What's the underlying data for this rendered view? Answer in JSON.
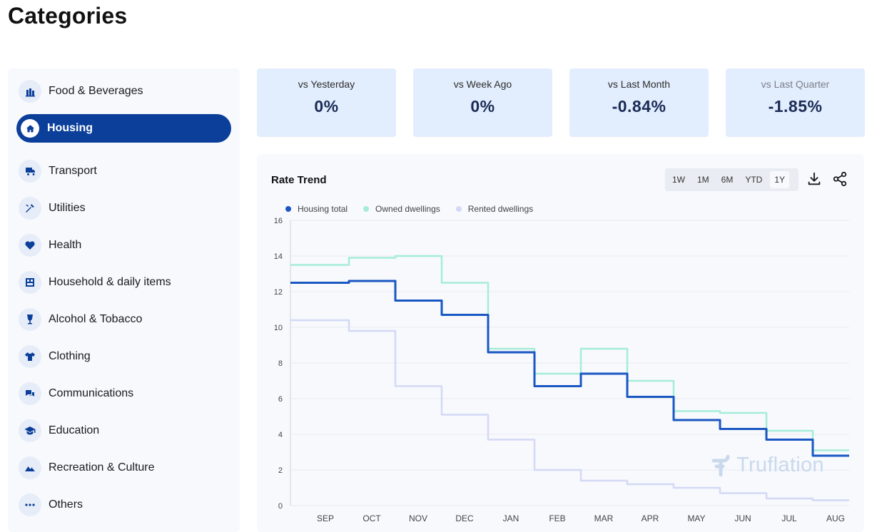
{
  "page": {
    "title": "Categories"
  },
  "sidebar": {
    "items": [
      {
        "label": "Food & Beverages",
        "icon": "food-icon",
        "active": false
      },
      {
        "label": "Housing",
        "icon": "home-icon",
        "active": true
      },
      {
        "label": "Transport",
        "icon": "transport-icon",
        "active": false
      },
      {
        "label": "Utilities",
        "icon": "utilities-icon",
        "active": false
      },
      {
        "label": "Health",
        "icon": "heart-icon",
        "active": false
      },
      {
        "label": "Household & daily items",
        "icon": "household-icon",
        "active": false
      },
      {
        "label": "Alcohol & Tobacco",
        "icon": "wine-glass-icon",
        "active": false
      },
      {
        "label": "Clothing",
        "icon": "tshirt-icon",
        "active": false
      },
      {
        "label": "Communications",
        "icon": "chat-icon",
        "active": false
      },
      {
        "label": "Education",
        "icon": "graduation-cap-icon",
        "active": false
      },
      {
        "label": "Recreation & Culture",
        "icon": "mountain-icon",
        "active": false
      },
      {
        "label": "Others",
        "icon": "more-dots-icon",
        "active": false
      }
    ]
  },
  "stats": [
    {
      "label": "vs Yesterday",
      "value": "0%"
    },
    {
      "label": "vs Week Ago",
      "value": "0%"
    },
    {
      "label": "vs Last Month",
      "value": "-0.84%"
    },
    {
      "label": "vs Last Quarter",
      "value": "-1.85%"
    }
  ],
  "chart": {
    "title": "Rate Trend",
    "ranges": [
      "1W",
      "1M",
      "6M",
      "YTD",
      "1Y"
    ],
    "active_range": "1Y",
    "download_icon": "download-icon",
    "share_icon": "share-icon",
    "watermark": "Truflation"
  },
  "colors": {
    "accent": "#0b3f9a",
    "card_bg": "#e2edfd",
    "housing_total": "#1957c2",
    "owned": "#a6ecd9",
    "rented": "#d3d9f5"
  },
  "chart_data": {
    "type": "line",
    "title": "",
    "x": [
      "SEP",
      "OCT",
      "NOV",
      "DEC",
      "JAN",
      "FEB",
      "MAR",
      "APR",
      "MAY",
      "JUN",
      "JUL",
      "AUG"
    ],
    "ylim": [
      0,
      16
    ],
    "yticks": [
      0,
      2,
      4,
      6,
      8,
      10,
      12,
      14,
      16
    ],
    "grid": true,
    "legend": "top-left",
    "series": [
      {
        "name": "Housing total",
        "color": "#1957c2",
        "values": [
          12.5,
          12.6,
          11.5,
          10.7,
          8.6,
          6.7,
          7.4,
          6.1,
          4.8,
          4.3,
          3.7,
          2.8
        ]
      },
      {
        "name": "Owned dwellings",
        "color": "#a6ecd9",
        "values": [
          13.5,
          13.9,
          14.0,
          12.5,
          8.8,
          7.4,
          8.8,
          7.0,
          5.3,
          5.2,
          4.2,
          3.1
        ]
      },
      {
        "name": "Rented dwellings",
        "color": "#d3d9f5",
        "values": [
          10.4,
          9.8,
          6.7,
          5.1,
          3.7,
          2.0,
          1.4,
          1.2,
          1.0,
          0.7,
          0.4,
          0.3
        ]
      }
    ]
  }
}
